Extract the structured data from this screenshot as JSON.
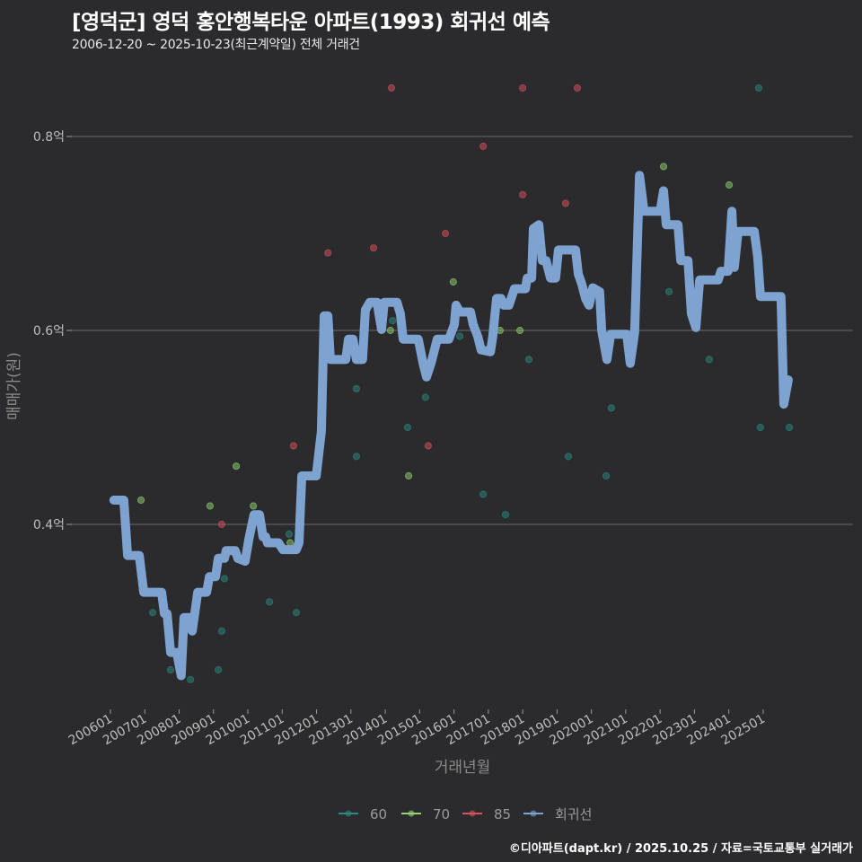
{
  "title": "[영덕군] 영덕 홍안행복타운 아파트(1993) 회귀선 예측",
  "subtitle": "2006-12-20 ~ 2025-10-23(최근계약일) 전체 거래건",
  "footer": "©디아파트(dapt.kr) / 2025.10.25 / 자료=국토교통부 실거래가",
  "chart_data": {
    "type": "scatter+line",
    "xlabel": "거래년월",
    "ylabel": "매매가(원)",
    "x_unit": "decimal year",
    "xlim": [
      2005.5,
      2026.0
    ],
    "ylim": [
      0.2,
      0.86
    ],
    "grid": true,
    "legend_position": "bottom",
    "x_ticks": [
      {
        "value": 2006,
        "label": "200601"
      },
      {
        "value": 2007,
        "label": "200701"
      },
      {
        "value": 2008,
        "label": "200801"
      },
      {
        "value": 2009,
        "label": "200901"
      },
      {
        "value": 2010,
        "label": "201001"
      },
      {
        "value": 2011,
        "label": "201101"
      },
      {
        "value": 2012,
        "label": "201201"
      },
      {
        "value": 2013,
        "label": "201301"
      },
      {
        "value": 2014,
        "label": "201401"
      },
      {
        "value": 2015,
        "label": "201501"
      },
      {
        "value": 2016,
        "label": "201601"
      },
      {
        "value": 2017,
        "label": "201701"
      },
      {
        "value": 2018,
        "label": "201801"
      },
      {
        "value": 2019,
        "label": "201901"
      },
      {
        "value": 2020,
        "label": "202001"
      },
      {
        "value": 2021,
        "label": "202101"
      },
      {
        "value": 2022,
        "label": "202201"
      },
      {
        "value": 2023,
        "label": "202301"
      },
      {
        "value": 2024,
        "label": "202401"
      },
      {
        "value": 2025,
        "label": "202501"
      }
    ],
    "y_ticks": [
      {
        "value": 0.4,
        "label": "0.4억"
      },
      {
        "value": 0.6,
        "label": "0.6억"
      },
      {
        "value": 0.8,
        "label": "0.8억"
      }
    ],
    "series": [
      {
        "name": "60",
        "type": "scatter",
        "color": "#2a8a80",
        "points": [
          [
            2007.23,
            0.309
          ],
          [
            2007.75,
            0.25
          ],
          [
            2008.33,
            0.24
          ],
          [
            2009.14,
            0.25
          ],
          [
            2009.24,
            0.29
          ],
          [
            2009.32,
            0.344
          ],
          [
            2010.63,
            0.32
          ],
          [
            2011.2,
            0.39
          ],
          [
            2011.41,
            0.309
          ],
          [
            2013.16,
            0.54
          ],
          [
            2013.16,
            0.47
          ],
          [
            2014.21,
            0.61
          ],
          [
            2014.65,
            0.5
          ],
          [
            2015.17,
            0.531
          ],
          [
            2016.17,
            0.594
          ],
          [
            2016.85,
            0.431
          ],
          [
            2017.5,
            0.41
          ],
          [
            2018.18,
            0.57
          ],
          [
            2019.33,
            0.47
          ],
          [
            2020.43,
            0.45
          ],
          [
            2020.58,
            0.52
          ],
          [
            2022.26,
            0.64
          ],
          [
            2023.43,
            0.57
          ],
          [
            2024.87,
            0.85
          ],
          [
            2024.92,
            0.5
          ],
          [
            2025.76,
            0.5
          ]
        ]
      },
      {
        "name": "70",
        "type": "scatter",
        "color": "#8fd46f",
        "points": [
          [
            2006.89,
            0.425
          ],
          [
            2008.9,
            0.419
          ],
          [
            2009.66,
            0.46
          ],
          [
            2010.16,
            0.419
          ],
          [
            2011.23,
            0.381
          ],
          [
            2014.15,
            0.6
          ],
          [
            2014.68,
            0.45
          ],
          [
            2015.98,
            0.65
          ],
          [
            2017.34,
            0.6
          ],
          [
            2017.92,
            0.6
          ],
          [
            2022.1,
            0.769
          ],
          [
            2024.01,
            0.75
          ]
        ]
      },
      {
        "name": "85",
        "type": "scatter",
        "color": "#d9505e",
        "points": [
          [
            2009.24,
            0.4
          ],
          [
            2011.33,
            0.481
          ],
          [
            2012.33,
            0.68
          ],
          [
            2013.66,
            0.685
          ],
          [
            2014.18,
            0.85
          ],
          [
            2015.25,
            0.481
          ],
          [
            2015.75,
            0.7
          ],
          [
            2016.85,
            0.79
          ],
          [
            2018.0,
            0.85
          ],
          [
            2018.0,
            0.74
          ],
          [
            2019.25,
            0.731
          ],
          [
            2019.59,
            0.85
          ]
        ]
      },
      {
        "name": "회귀선",
        "type": "line",
        "color": "#7fa3d1",
        "points": [
          [
            2006.1,
            0.425
          ],
          [
            2006.39,
            0.425
          ],
          [
            2006.5,
            0.368
          ],
          [
            2006.84,
            0.368
          ],
          [
            2006.97,
            0.33
          ],
          [
            2007.49,
            0.33
          ],
          [
            2007.57,
            0.308
          ],
          [
            2007.65,
            0.308
          ],
          [
            2007.75,
            0.268
          ],
          [
            2007.93,
            0.268
          ],
          [
            2008.06,
            0.244
          ],
          [
            2008.14,
            0.304
          ],
          [
            2008.33,
            0.304
          ],
          [
            2008.38,
            0.29
          ],
          [
            2008.54,
            0.33
          ],
          [
            2008.8,
            0.33
          ],
          [
            2008.88,
            0.346
          ],
          [
            2009.06,
            0.346
          ],
          [
            2009.14,
            0.365
          ],
          [
            2009.32,
            0.365
          ],
          [
            2009.37,
            0.373
          ],
          [
            2009.63,
            0.373
          ],
          [
            2009.71,
            0.365
          ],
          [
            2009.92,
            0.362
          ],
          [
            2010.03,
            0.385
          ],
          [
            2010.18,
            0.41
          ],
          [
            2010.34,
            0.41
          ],
          [
            2010.44,
            0.387
          ],
          [
            2010.52,
            0.387
          ],
          [
            2010.57,
            0.381
          ],
          [
            2010.89,
            0.381
          ],
          [
            2011.02,
            0.374
          ],
          [
            2011.41,
            0.374
          ],
          [
            2011.49,
            0.381
          ],
          [
            2011.57,
            0.45
          ],
          [
            2011.99,
            0.45
          ],
          [
            2012.14,
            0.496
          ],
          [
            2012.22,
            0.615
          ],
          [
            2012.33,
            0.615
          ],
          [
            2012.4,
            0.57
          ],
          [
            2012.85,
            0.57
          ],
          [
            2012.93,
            0.591
          ],
          [
            2013.06,
            0.591
          ],
          [
            2013.16,
            0.57
          ],
          [
            2013.34,
            0.57
          ],
          [
            2013.42,
            0.621
          ],
          [
            2013.55,
            0.629
          ],
          [
            2013.76,
            0.629
          ],
          [
            2013.89,
            0.601
          ],
          [
            2013.97,
            0.629
          ],
          [
            2014.34,
            0.629
          ],
          [
            2014.44,
            0.617
          ],
          [
            2014.52,
            0.591
          ],
          [
            2014.96,
            0.591
          ],
          [
            2015.1,
            0.566
          ],
          [
            2015.2,
            0.552
          ],
          [
            2015.33,
            0.566
          ],
          [
            2015.51,
            0.591
          ],
          [
            2015.85,
            0.591
          ],
          [
            2016.01,
            0.606
          ],
          [
            2016.06,
            0.626
          ],
          [
            2016.17,
            0.619
          ],
          [
            2016.48,
            0.619
          ],
          [
            2016.56,
            0.606
          ],
          [
            2016.69,
            0.594
          ],
          [
            2016.79,
            0.58
          ],
          [
            2017.06,
            0.578
          ],
          [
            2017.13,
            0.594
          ],
          [
            2017.24,
            0.633
          ],
          [
            2017.37,
            0.633
          ],
          [
            2017.45,
            0.626
          ],
          [
            2017.6,
            0.626
          ],
          [
            2017.76,
            0.643
          ],
          [
            2018.08,
            0.643
          ],
          [
            2018.13,
            0.654
          ],
          [
            2018.26,
            0.654
          ],
          [
            2018.31,
            0.705
          ],
          [
            2018.47,
            0.709
          ],
          [
            2018.57,
            0.672
          ],
          [
            2018.68,
            0.672
          ],
          [
            2018.81,
            0.654
          ],
          [
            2018.96,
            0.654
          ],
          [
            2019.04,
            0.683
          ],
          [
            2019.54,
            0.683
          ],
          [
            2019.62,
            0.658
          ],
          [
            2019.72,
            0.648
          ],
          [
            2019.83,
            0.633
          ],
          [
            2019.93,
            0.626
          ],
          [
            2020.04,
            0.644
          ],
          [
            2020.24,
            0.64
          ],
          [
            2020.3,
            0.6
          ],
          [
            2020.45,
            0.57
          ],
          [
            2020.56,
            0.596
          ],
          [
            2021.03,
            0.596
          ],
          [
            2021.13,
            0.566
          ],
          [
            2021.26,
            0.598
          ],
          [
            2021.4,
            0.76
          ],
          [
            2021.53,
            0.723
          ],
          [
            2022.0,
            0.723
          ],
          [
            2022.1,
            0.744
          ],
          [
            2022.18,
            0.709
          ],
          [
            2022.52,
            0.709
          ],
          [
            2022.6,
            0.672
          ],
          [
            2022.81,
            0.672
          ],
          [
            2022.91,
            0.617
          ],
          [
            2023.04,
            0.603
          ],
          [
            2023.15,
            0.652
          ],
          [
            2023.69,
            0.652
          ],
          [
            2023.77,
            0.661
          ],
          [
            2023.98,
            0.661
          ],
          [
            2024.09,
            0.723
          ],
          [
            2024.16,
            0.665
          ],
          [
            2024.27,
            0.702
          ],
          [
            2024.74,
            0.702
          ],
          [
            2024.84,
            0.676
          ],
          [
            2024.92,
            0.635
          ],
          [
            2025.52,
            0.635
          ],
          [
            2025.6,
            0.524
          ],
          [
            2025.73,
            0.549
          ]
        ]
      }
    ]
  }
}
